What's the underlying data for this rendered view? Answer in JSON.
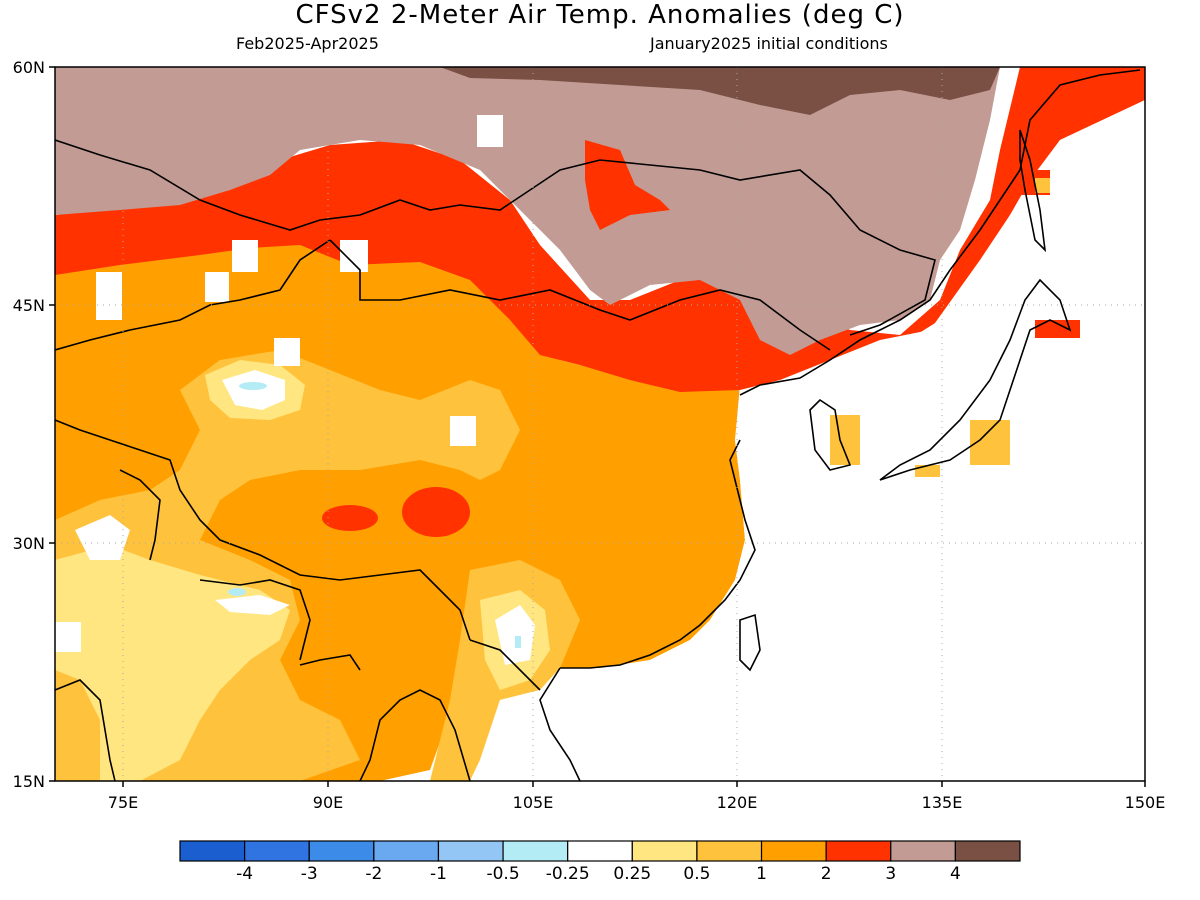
{
  "header": {
    "title": "CFSv2 2-Meter Air Temp. Anomalies (deg C)",
    "subtitle_left": "Feb2025-Apr2025",
    "subtitle_right": "January2025 initial conditions"
  },
  "axes": {
    "lat_labels": [
      "60N",
      "45N",
      "30N",
      "15N"
    ],
    "lon_labels": [
      "75E",
      "90E",
      "105E",
      "120E",
      "135E",
      "150E"
    ],
    "lat_range": [
      15,
      60
    ],
    "lon_range": [
      70,
      150
    ],
    "grid": "dotted"
  },
  "colorbar": {
    "colors": [
      "#1a5ecf",
      "#2f74e0",
      "#3d8be9",
      "#6aa9f0",
      "#94c6f5",
      "#b4ecf6",
      "#ffffff",
      "#ffe680",
      "#ffc23c",
      "#ffa000",
      "#ff3200",
      "#c29c94",
      "#7a4f44"
    ],
    "labels": [
      "-4",
      "-3",
      "-2",
      "-1",
      "-0.5",
      "-0.25",
      "0.25",
      "0.5",
      "1",
      "2",
      "3",
      "4"
    ]
  },
  "map": {
    "type": "anomaly-map",
    "variable": "2-Meter Air Temp. Anomalies",
    "units": "deg C",
    "region": "East Asia"
  }
}
